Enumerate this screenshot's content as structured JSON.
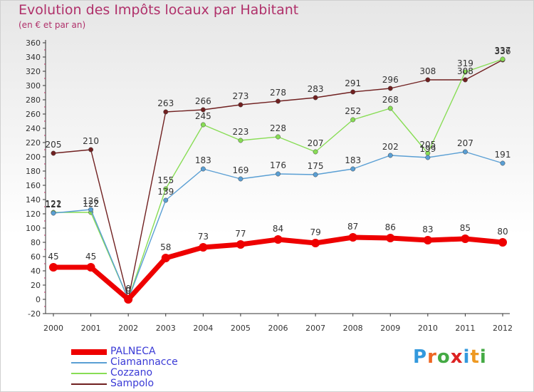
{
  "title": "Evolution des Impôts locaux par Habitant",
  "subtitle": "(en € et par an)",
  "brand": "Proxiti",
  "chart_data": {
    "type": "line",
    "title": "Evolution des Impôts locaux par Habitant",
    "subtitle": "(en € et par an)",
    "xlabel": "",
    "ylabel": "",
    "ylim": [
      -20,
      360
    ],
    "ytick_step": 20,
    "grid": false,
    "legend_position": "bottom-left",
    "categories": [
      "2000",
      "2001",
      "2002",
      "2003",
      "2004",
      "2005",
      "2006",
      "2007",
      "2008",
      "2009",
      "2010",
      "2011",
      "2012"
    ],
    "series": [
      {
        "name": "PALNECA",
        "color": "#ee0000",
        "values": [
          45,
          45,
          0,
          58,
          73,
          77,
          84,
          79,
          87,
          86,
          83,
          85,
          80
        ]
      },
      {
        "name": "Ciamannacce",
        "color": "#5a9fd4",
        "values": [
          121,
          126,
          0,
          139,
          183,
          169,
          176,
          175,
          183,
          202,
          199,
          207,
          191
        ]
      },
      {
        "name": "Cozzano",
        "color": "#88dd55",
        "values": [
          122,
          122,
          0,
          155,
          245,
          223,
          228,
          207,
          252,
          268,
          205,
          319,
          337
        ]
      },
      {
        "name": "Sampolo",
        "color": "#702020",
        "values": [
          205,
          210,
          0,
          263,
          266,
          273,
          278,
          283,
          291,
          296,
          308,
          308,
          336
        ]
      }
    ]
  }
}
